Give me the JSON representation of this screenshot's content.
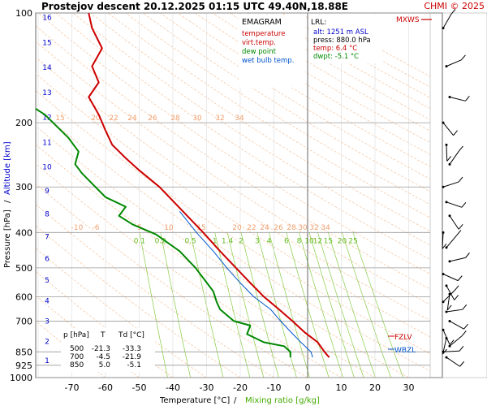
{
  "header": {
    "title": "Prostejov  descent  20.12.2025 01:15 UTC  49.40N,18.88E",
    "copyright": "CHMI © 2025"
  },
  "legend": {
    "heading": "EMAGRAM",
    "items": [
      {
        "label": "temperature",
        "color": "#cc0000"
      },
      {
        "label": "virt.temp.",
        "color": "#cc0000"
      },
      {
        "label": "dew point",
        "color": "#008800"
      },
      {
        "label": "wet bulb temp.",
        "color": "#0055cc"
      }
    ]
  },
  "lrl_box": {
    "heading": "LRL:",
    "alt": "alt: 1251 m ASL",
    "press": "press: 880.0 hPa",
    "temp": "temp: 6.4 °C",
    "dwpt": "dwpt: -5.1 °C"
  },
  "levels_table": {
    "header": [
      "p [hPa]",
      "T",
      "Td [°C]"
    ],
    "rows": [
      [
        "500",
        "-21.3",
        "-33.3"
      ],
      [
        "700",
        "-4.5",
        "-21.9"
      ],
      [
        "850",
        "5.0",
        "-5.1"
      ]
    ]
  },
  "markers": {
    "mxws": "MXWS",
    "fzlv": "FZLV",
    "wbzl": "WBZL"
  },
  "axes": {
    "xlabel_temp": "Temperature [°C]",
    "xlabel_sep": "/",
    "xlabel_mix": "Mixing ratio [g/kg]",
    "ylabel_pressure": "Pressure [hPa]",
    "ylabel_sep": "/",
    "ylabel_altitude": "Altitude [km]"
  },
  "colors": {
    "temperature": "#cc0000",
    "dewpoint": "#008800",
    "wetbulb": "#0055cc",
    "isobar": "#999999",
    "dry_adiabat": "#f2b98c",
    "mixing_ratio": "#88cc44",
    "altitude_label": "#0000cc"
  },
  "chart_data": {
    "type": "line",
    "xlim": [
      -80,
      40
    ],
    "ylim_hpa": [
      1000,
      100
    ],
    "y_scale": "log",
    "grid": true,
    "legend_position": "top-right",
    "x_ticks": [
      -70,
      -60,
      -50,
      -40,
      -30,
      -20,
      -10,
      0,
      10,
      20,
      30
    ],
    "pressure_ticks": [
      100,
      200,
      300,
      400,
      500,
      600,
      700,
      850,
      925,
      1000
    ],
    "altitude_ticks_km": [
      1,
      2,
      3,
      4,
      5,
      6,
      7,
      8,
      9,
      10,
      11,
      12,
      13,
      14,
      15,
      16
    ],
    "mixing_ratio_labels": [
      "0.1",
      "0.2",
      "0.5",
      "1",
      "1.4",
      "2",
      "3",
      "4",
      "6",
      "8",
      "10",
      "12",
      "15",
      "20",
      "25"
    ],
    "adiabat_labels_lower": [
      "-10",
      "-6",
      "5",
      "10",
      "15",
      "20",
      "22",
      "24",
      "26",
      "28",
      "30",
      "32",
      "34"
    ],
    "adiabat_labels_upper": [
      "15",
      "20",
      "22",
      "24",
      "26",
      "28",
      "30",
      "32",
      "34"
    ],
    "series": [
      {
        "name": "temperature",
        "points": [
          [
            6.4,
            880
          ],
          [
            5.0,
            850
          ],
          [
            3.0,
            800
          ],
          [
            -1.0,
            750
          ],
          [
            -4.5,
            700
          ],
          [
            -8.5,
            650
          ],
          [
            -13.0,
            600
          ],
          [
            -17.0,
            550
          ],
          [
            -21.3,
            500
          ],
          [
            -26.0,
            450
          ],
          [
            -31.0,
            400
          ],
          [
            -37.0,
            350
          ],
          [
            -44.0,
            300
          ],
          [
            -50.0,
            270
          ],
          [
            -54.0,
            250
          ],
          [
            -58.0,
            230
          ],
          [
            -60.0,
            210
          ],
          [
            -62.0,
            190
          ],
          [
            -65.0,
            170
          ],
          [
            -62.0,
            155
          ],
          [
            -64.0,
            140
          ],
          [
            -61.0,
            125
          ],
          [
            -64.0,
            110
          ],
          [
            -65.0,
            100
          ]
        ]
      },
      {
        "name": "dew point",
        "points": [
          [
            -5.1,
            880
          ],
          [
            -5.1,
            850
          ],
          [
            -7.0,
            820
          ],
          [
            -13.0,
            800
          ],
          [
            -18.0,
            760
          ],
          [
            -17.0,
            720
          ],
          [
            -21.9,
            700
          ],
          [
            -26.0,
            650
          ],
          [
            -27.0,
            620
          ],
          [
            -28.0,
            580
          ],
          [
            -33.3,
            500
          ],
          [
            -38.0,
            450
          ],
          [
            -45.0,
            405
          ],
          [
            -52.0,
            380
          ],
          [
            -56.0,
            360
          ],
          [
            -54.0,
            340
          ],
          [
            -60.0,
            320
          ],
          [
            -63.0,
            300
          ],
          [
            -67.0,
            275
          ],
          [
            -69.0,
            260
          ],
          [
            -68.0,
            240
          ],
          [
            -71.0,
            220
          ],
          [
            -78.0,
            190
          ],
          [
            -82.0,
            180
          ]
        ]
      },
      {
        "name": "wet bulb temp.",
        "points": [
          [
            1.5,
            880
          ],
          [
            1.0,
            850
          ],
          [
            -2.0,
            800
          ],
          [
            -5.0,
            750
          ],
          [
            -8.0,
            700
          ],
          [
            -11.0,
            650
          ],
          [
            -16.0,
            600
          ],
          [
            -20.0,
            550
          ],
          [
            -24.0,
            500
          ],
          [
            -28.0,
            450
          ],
          [
            -33.0,
            400
          ],
          [
            -38.0,
            350
          ]
        ]
      }
    ],
    "wind_barbs_hpa": [
      110,
      140,
      170,
      200,
      230,
      260,
      300,
      330,
      360,
      400,
      440,
      480,
      520,
      560,
      590,
      620,
      660,
      700,
      740,
      780,
      820,
      850,
      880
    ]
  }
}
